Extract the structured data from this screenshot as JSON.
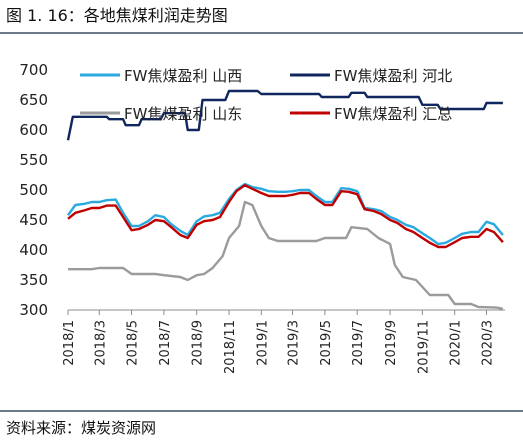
{
  "figure": {
    "title": "图 1. 16：各地焦煤利润走势图",
    "source": "资料来源：煤炭资源网"
  },
  "chart_data": {
    "type": "line",
    "title": "",
    "xlabel": "",
    "ylabel": "",
    "ylim": [
      300,
      700
    ],
    "yticks": [
      300,
      350,
      400,
      450,
      500,
      550,
      600,
      650,
      700
    ],
    "xticks": [
      "2018/1",
      "2018/3",
      "2018/5",
      "2018/7",
      "2018/9",
      "2018/11",
      "2019/1",
      "2019/3",
      "2019/5",
      "2019/7",
      "2019/9",
      "2019/11",
      "2020/1",
      "2020/3"
    ],
    "xlim": [
      "2018-01-01",
      "2020-04-05"
    ],
    "grid": false,
    "legend_position": "top",
    "series": [
      {
        "name": "FW焦煤盈利 山西",
        "color": "#29a9e0",
        "points": [
          [
            "2018-01-01",
            458
          ],
          [
            "2018-01-15",
            475
          ],
          [
            "2018-02-01",
            477
          ],
          [
            "2018-02-15",
            480
          ],
          [
            "2018-03-01",
            480
          ],
          [
            "2018-03-15",
            483
          ],
          [
            "2018-04-01",
            484
          ],
          [
            "2018-04-15",
            462
          ],
          [
            "2018-05-01",
            440
          ],
          [
            "2018-05-15",
            440
          ],
          [
            "2018-06-01",
            448
          ],
          [
            "2018-06-15",
            458
          ],
          [
            "2018-07-01",
            455
          ],
          [
            "2018-07-15",
            443
          ],
          [
            "2018-08-01",
            432
          ],
          [
            "2018-08-15",
            425
          ],
          [
            "2018-09-01",
            448
          ],
          [
            "2018-09-15",
            456
          ],
          [
            "2018-10-01",
            458
          ],
          [
            "2018-10-15",
            462
          ],
          [
            "2018-11-01",
            485
          ],
          [
            "2018-11-15",
            500
          ],
          [
            "2018-12-01",
            510
          ],
          [
            "2018-12-15",
            505
          ],
          [
            "2019-01-01",
            502
          ],
          [
            "2019-01-15",
            498
          ],
          [
            "2019-02-01",
            497
          ],
          [
            "2019-02-15",
            497
          ],
          [
            "2019-03-01",
            498
          ],
          [
            "2019-03-15",
            500
          ],
          [
            "2019-04-01",
            500
          ],
          [
            "2019-04-15",
            490
          ],
          [
            "2019-05-01",
            480
          ],
          [
            "2019-05-15",
            480
          ],
          [
            "2019-06-01",
            503
          ],
          [
            "2019-06-15",
            502
          ],
          [
            "2019-07-01",
            498
          ],
          [
            "2019-07-15",
            470
          ],
          [
            "2019-08-01",
            468
          ],
          [
            "2019-08-15",
            465
          ],
          [
            "2019-09-01",
            455
          ],
          [
            "2019-09-15",
            450
          ],
          [
            "2019-10-01",
            442
          ],
          [
            "2019-10-15",
            438
          ],
          [
            "2019-11-01",
            428
          ],
          [
            "2019-11-15",
            420
          ],
          [
            "2019-12-01",
            410
          ],
          [
            "2019-12-15",
            412
          ],
          [
            "2020-01-01",
            420
          ],
          [
            "2020-01-15",
            427
          ],
          [
            "2020-02-01",
            430
          ],
          [
            "2020-02-15",
            430
          ],
          [
            "2020-03-01",
            447
          ],
          [
            "2020-03-15",
            443
          ],
          [
            "2020-04-01",
            425
          ]
        ]
      },
      {
        "name": "FW焦煤盈利 河北",
        "color": "#10265e",
        "points": [
          [
            "2018-01-01",
            583
          ],
          [
            "2018-01-10",
            622
          ],
          [
            "2018-02-01",
            622
          ],
          [
            "2018-03-15",
            622
          ],
          [
            "2018-03-20",
            618
          ],
          [
            "2018-04-15",
            618
          ],
          [
            "2018-04-20",
            608
          ],
          [
            "2018-05-15",
            608
          ],
          [
            "2018-05-20",
            618
          ],
          [
            "2018-06-25",
            618
          ],
          [
            "2018-07-01",
            628
          ],
          [
            "2018-08-10",
            628
          ],
          [
            "2018-08-15",
            600
          ],
          [
            "2018-09-05",
            600
          ],
          [
            "2018-09-12",
            650
          ],
          [
            "2018-10-25",
            650
          ],
          [
            "2018-11-01",
            665
          ],
          [
            "2018-12-25",
            665
          ],
          [
            "2019-01-01",
            660
          ],
          [
            "2019-04-20",
            660
          ],
          [
            "2019-04-25",
            655
          ],
          [
            "2019-06-15",
            655
          ],
          [
            "2019-06-20",
            662
          ],
          [
            "2019-07-15",
            662
          ],
          [
            "2019-07-20",
            655
          ],
          [
            "2019-10-25",
            655
          ],
          [
            "2019-11-01",
            642
          ],
          [
            "2019-11-30",
            642
          ],
          [
            "2019-12-05",
            635
          ],
          [
            "2020-02-25",
            635
          ],
          [
            "2020-03-01",
            645
          ],
          [
            "2020-04-01",
            645
          ]
        ]
      },
      {
        "name": "FW焦煤盈利 山东",
        "color": "#9b9b9b",
        "points": [
          [
            "2018-01-01",
            368
          ],
          [
            "2018-02-15",
            368
          ],
          [
            "2018-03-01",
            370
          ],
          [
            "2018-04-15",
            370
          ],
          [
            "2018-05-01",
            360
          ],
          [
            "2018-06-15",
            360
          ],
          [
            "2018-07-01",
            358
          ],
          [
            "2018-08-01",
            355
          ],
          [
            "2018-08-15",
            350
          ],
          [
            "2018-09-01",
            358
          ],
          [
            "2018-09-15",
            360
          ],
          [
            "2018-10-01",
            370
          ],
          [
            "2018-10-20",
            390
          ],
          [
            "2018-11-01",
            420
          ],
          [
            "2018-11-20",
            440
          ],
          [
            "2018-12-01",
            480
          ],
          [
            "2018-12-15",
            475
          ],
          [
            "2019-01-01",
            440
          ],
          [
            "2019-01-15",
            420
          ],
          [
            "2019-02-01",
            415
          ],
          [
            "2019-04-15",
            415
          ],
          [
            "2019-05-01",
            420
          ],
          [
            "2019-06-10",
            420
          ],
          [
            "2019-06-20",
            438
          ],
          [
            "2019-07-20",
            435
          ],
          [
            "2019-08-10",
            420
          ],
          [
            "2019-09-01",
            410
          ],
          [
            "2019-09-10",
            375
          ],
          [
            "2019-09-25",
            355
          ],
          [
            "2019-10-20",
            350
          ],
          [
            "2019-11-15",
            325
          ],
          [
            "2019-12-20",
            325
          ],
          [
            "2020-01-01",
            310
          ],
          [
            "2020-02-01",
            310
          ],
          [
            "2020-02-15",
            305
          ],
          [
            "2020-03-20",
            304
          ],
          [
            "2020-04-01",
            302
          ]
        ]
      },
      {
        "name": "FW焦煤盈利 汇总",
        "color": "#c00000",
        "points": [
          [
            "2018-01-01",
            452
          ],
          [
            "2018-01-15",
            462
          ],
          [
            "2018-02-01",
            466
          ],
          [
            "2018-02-15",
            470
          ],
          [
            "2018-03-01",
            470
          ],
          [
            "2018-03-15",
            474
          ],
          [
            "2018-04-01",
            474
          ],
          [
            "2018-04-15",
            455
          ],
          [
            "2018-05-01",
            433
          ],
          [
            "2018-05-15",
            435
          ],
          [
            "2018-06-01",
            442
          ],
          [
            "2018-06-15",
            450
          ],
          [
            "2018-07-01",
            448
          ],
          [
            "2018-07-15",
            438
          ],
          [
            "2018-08-01",
            425
          ],
          [
            "2018-08-15",
            420
          ],
          [
            "2018-09-01",
            442
          ],
          [
            "2018-09-15",
            448
          ],
          [
            "2018-10-01",
            450
          ],
          [
            "2018-10-15",
            455
          ],
          [
            "2018-11-01",
            480
          ],
          [
            "2018-11-15",
            498
          ],
          [
            "2018-12-01",
            508
          ],
          [
            "2018-12-15",
            502
          ],
          [
            "2019-01-01",
            495
          ],
          [
            "2019-01-15",
            490
          ],
          [
            "2019-02-01",
            490
          ],
          [
            "2019-02-15",
            490
          ],
          [
            "2019-03-01",
            492
          ],
          [
            "2019-03-15",
            495
          ],
          [
            "2019-04-01",
            495
          ],
          [
            "2019-04-15",
            485
          ],
          [
            "2019-05-01",
            475
          ],
          [
            "2019-05-15",
            475
          ],
          [
            "2019-06-01",
            498
          ],
          [
            "2019-06-15",
            497
          ],
          [
            "2019-07-01",
            493
          ],
          [
            "2019-07-15",
            468
          ],
          [
            "2019-08-01",
            465
          ],
          [
            "2019-08-15",
            460
          ],
          [
            "2019-09-01",
            450
          ],
          [
            "2019-09-15",
            445
          ],
          [
            "2019-10-01",
            435
          ],
          [
            "2019-10-15",
            430
          ],
          [
            "2019-11-01",
            420
          ],
          [
            "2019-11-15",
            412
          ],
          [
            "2019-12-01",
            405
          ],
          [
            "2019-12-15",
            405
          ],
          [
            "2020-01-01",
            413
          ],
          [
            "2020-01-15",
            420
          ],
          [
            "2020-02-01",
            422
          ],
          [
            "2020-02-15",
            422
          ],
          [
            "2020-03-01",
            435
          ],
          [
            "2020-03-15",
            430
          ],
          [
            "2020-04-01",
            413
          ]
        ]
      }
    ]
  }
}
